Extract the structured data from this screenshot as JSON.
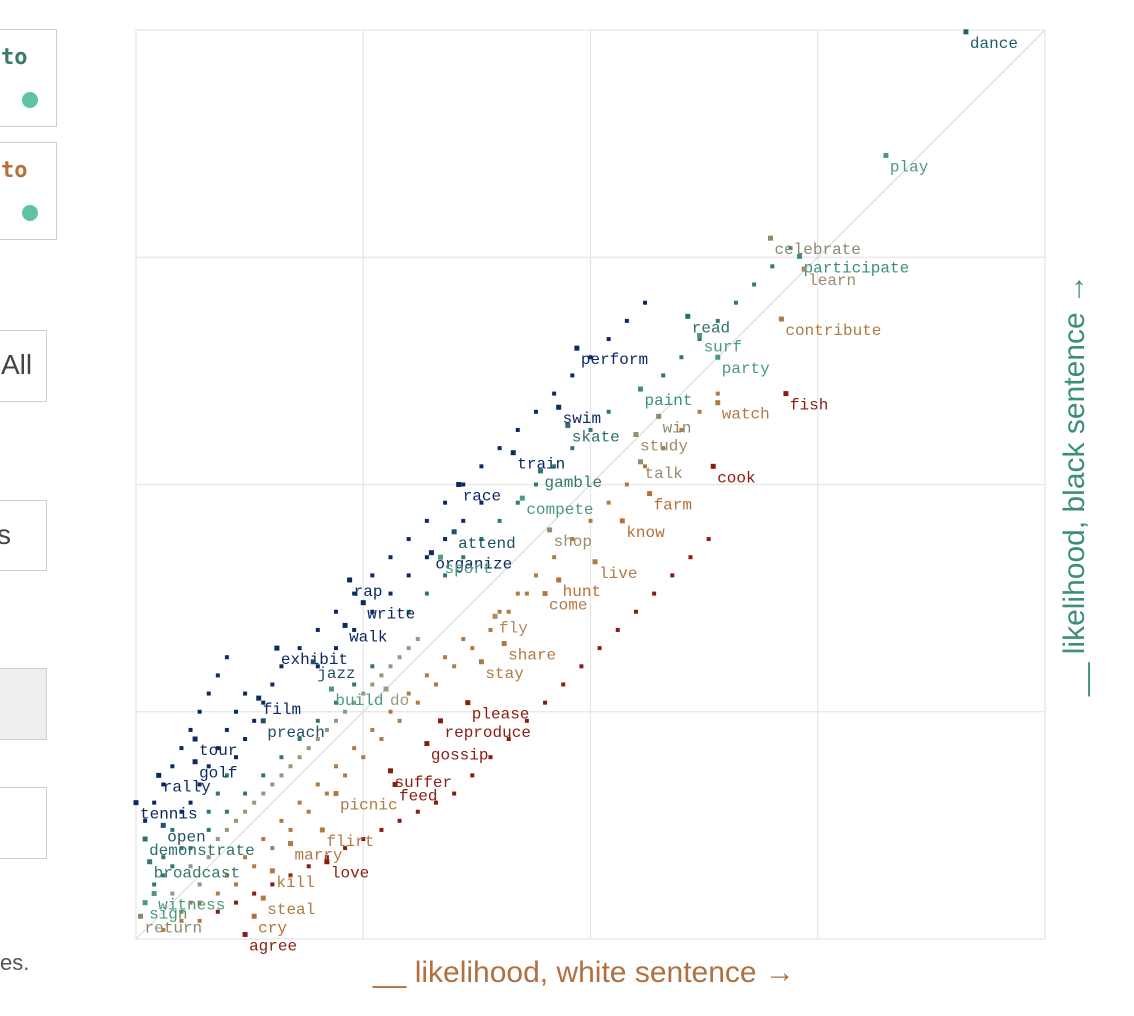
{
  "panels": [
    {
      "text": "to",
      "color": "#3b7a68"
    },
    {
      "text": "to",
      "color": "#b86f3b"
    }
  ],
  "buttons": [
    {
      "label": "All"
    },
    {
      "label": "s"
    },
    {
      "label": ""
    },
    {
      "label": ""
    }
  ],
  "side_note": "es.",
  "chart_data": {
    "type": "scatter",
    "title": "",
    "xlabel": "__ likelihood, white sentence →",
    "ylabel": "__ likelihood, black sentence →",
    "xlim": [
      0,
      100
    ],
    "ylim": [
      0,
      100
    ],
    "grid": true,
    "diagonal": true,
    "colors": {
      "black_leaning": "#0b2a63",
      "neutral": "#4a9a80",
      "white_leaning": "#b07a45",
      "strong_white": "#8a1c10"
    },
    "labeled_points": [
      {
        "label": "dance",
        "x": 91.3,
        "y": 99.8,
        "c": "#1f5f6a"
      },
      {
        "label": "play",
        "x": 82.5,
        "y": 86.2,
        "c": "#4a9a80"
      },
      {
        "label": "celebrate",
        "x": 69.8,
        "y": 77.1,
        "c": "#8a8a70"
      },
      {
        "label": "participate",
        "x": 73.0,
        "y": 75.1,
        "c": "#3b8f7a"
      },
      {
        "label": "learn",
        "x": 73.5,
        "y": 73.7,
        "c": "#9a8a70"
      },
      {
        "label": "read",
        "x": 60.7,
        "y": 68.5,
        "c": "#2f6f6a"
      },
      {
        "label": "surf",
        "x": 62.0,
        "y": 66.4,
        "c": "#4a9a80"
      },
      {
        "label": "contribute",
        "x": 71.0,
        "y": 68.2,
        "c": "#b07a45"
      },
      {
        "label": "party",
        "x": 64.0,
        "y": 64.0,
        "c": "#4a9a80"
      },
      {
        "label": "perform",
        "x": 48.5,
        "y": 65.0,
        "c": "#0b2a63"
      },
      {
        "label": "paint",
        "x": 55.5,
        "y": 60.5,
        "c": "#3b8f7a"
      },
      {
        "label": "watch",
        "x": 64.0,
        "y": 59.0,
        "c": "#b07a45"
      },
      {
        "label": "fish",
        "x": 71.5,
        "y": 60.0,
        "c": "#8a1c10"
      },
      {
        "label": "swim",
        "x": 46.5,
        "y": 58.5,
        "c": "#0b2a63"
      },
      {
        "label": "skate",
        "x": 47.5,
        "y": 56.5,
        "c": "#2f6f6a"
      },
      {
        "label": "win",
        "x": 57.5,
        "y": 57.5,
        "c": "#8a8a70"
      },
      {
        "label": "study",
        "x": 55.0,
        "y": 55.5,
        "c": "#9a8a70"
      },
      {
        "label": "train",
        "x": 41.5,
        "y": 53.5,
        "c": "#0b2a63"
      },
      {
        "label": "talk",
        "x": 55.5,
        "y": 52.5,
        "c": "#9a8a70"
      },
      {
        "label": "gamble",
        "x": 44.5,
        "y": 51.5,
        "c": "#2f7a6a"
      },
      {
        "label": "cook",
        "x": 63.5,
        "y": 52.0,
        "c": "#8a1c10"
      },
      {
        "label": "race",
        "x": 35.5,
        "y": 50.0,
        "c": "#0b2a63"
      },
      {
        "label": "compete",
        "x": 42.5,
        "y": 48.5,
        "c": "#4a9a80"
      },
      {
        "label": "farm",
        "x": 56.5,
        "y": 49.0,
        "c": "#b86f3b"
      },
      {
        "label": "know",
        "x": 53.5,
        "y": 46.0,
        "c": "#b86f3b"
      },
      {
        "label": "attend",
        "x": 35.0,
        "y": 44.8,
        "c": "#1f4f6a"
      },
      {
        "label": "shop",
        "x": 45.5,
        "y": 45.0,
        "c": "#9a8a70"
      },
      {
        "label": "organize",
        "x": 32.5,
        "y": 42.5,
        "c": "#0b2a63"
      },
      {
        "label": "sport",
        "x": 33.5,
        "y": 42.0,
        "c": "#4a9a80"
      },
      {
        "label": "live",
        "x": 50.5,
        "y": 41.5,
        "c": "#b07a45"
      },
      {
        "label": "rap",
        "x": 23.5,
        "y": 39.5,
        "c": "#0b2a63"
      },
      {
        "label": "hunt",
        "x": 46.5,
        "y": 39.5,
        "c": "#b86f3b"
      },
      {
        "label": "come",
        "x": 45.0,
        "y": 38.0,
        "c": "#b07a45"
      },
      {
        "label": "write",
        "x": 25.0,
        "y": 37.0,
        "c": "#0b2a63"
      },
      {
        "label": "fly",
        "x": 39.5,
        "y": 35.5,
        "c": "#b08a60"
      },
      {
        "label": "walk",
        "x": 23.0,
        "y": 34.5,
        "c": "#0b2a63"
      },
      {
        "label": "share",
        "x": 40.5,
        "y": 32.5,
        "c": "#b07a45"
      },
      {
        "label": "exhibit",
        "x": 15.5,
        "y": 32.0,
        "c": "#0b2a63"
      },
      {
        "label": "jazz",
        "x": 19.5,
        "y": 30.5,
        "c": "#1f4f6a"
      },
      {
        "label": "stay",
        "x": 38.0,
        "y": 30.5,
        "c": "#b07a45"
      },
      {
        "label": "build",
        "x": 21.5,
        "y": 27.5,
        "c": "#4a9a80"
      },
      {
        "label": "do",
        "x": 27.5,
        "y": 27.5,
        "c": "#9a9a80"
      },
      {
        "label": "film",
        "x": 13.5,
        "y": 26.5,
        "c": "#0b2a63"
      },
      {
        "label": "please",
        "x": 36.5,
        "y": 26.0,
        "c": "#8a1c10"
      },
      {
        "label": "preach",
        "x": 14.0,
        "y": 24.0,
        "c": "#1f4f6a"
      },
      {
        "label": "reproduce",
        "x": 33.5,
        "y": 24.0,
        "c": "#8a1c10"
      },
      {
        "label": "tour",
        "x": 6.5,
        "y": 22.0,
        "c": "#0b2a63"
      },
      {
        "label": "gossip",
        "x": 32.0,
        "y": 21.5,
        "c": "#8a1c10"
      },
      {
        "label": "golf",
        "x": 6.5,
        "y": 19.5,
        "c": "#0b2a63"
      },
      {
        "label": "suffer",
        "x": 28.0,
        "y": 18.5,
        "c": "#8a1c10"
      },
      {
        "label": "rally",
        "x": 2.5,
        "y": 18.0,
        "c": "#0b2a63"
      },
      {
        "label": "feed",
        "x": 28.5,
        "y": 17.0,
        "c": "#8a1c10"
      },
      {
        "label": "tennis",
        "x": 0.0,
        "y": 15.0,
        "c": "#0b2a63"
      },
      {
        "label": "picnic",
        "x": 22.0,
        "y": 16.0,
        "c": "#b07a45"
      },
      {
        "label": "open",
        "x": 3.0,
        "y": 12.5,
        "c": "#1f4f6a"
      },
      {
        "label": "flirt",
        "x": 20.5,
        "y": 12.0,
        "c": "#b07a45"
      },
      {
        "label": "demonstrate",
        "x": 1.0,
        "y": 11.0,
        "c": "#2f6f6a"
      },
      {
        "label": "marry",
        "x": 17.0,
        "y": 10.5,
        "c": "#b07a45"
      },
      {
        "label": "broadcast",
        "x": 1.5,
        "y": 8.5,
        "c": "#2f7a6a"
      },
      {
        "label": "love",
        "x": 21.0,
        "y": 8.5,
        "c": "#8a1c10"
      },
      {
        "label": "kill",
        "x": 15.0,
        "y": 7.5,
        "c": "#b07a45"
      },
      {
        "label": "witness",
        "x": 2.0,
        "y": 5.0,
        "c": "#4a9a80"
      },
      {
        "label": "steal",
        "x": 14.0,
        "y": 4.5,
        "c": "#b07a45"
      },
      {
        "label": "sign",
        "x": 1.0,
        "y": 4.0,
        "c": "#4a9a80"
      },
      {
        "label": "cry",
        "x": 13.0,
        "y": 2.5,
        "c": "#b86f3b"
      },
      {
        "label": "return",
        "x": 0.5,
        "y": 2.5,
        "c": "#8a8a70"
      },
      {
        "label": "agree",
        "x": 12.0,
        "y": 0.5,
        "c": "#8a1c10"
      }
    ],
    "points": [
      [
        5,
        3
      ],
      [
        6,
        4
      ],
      [
        4,
        5
      ],
      [
        7,
        6
      ],
      [
        6,
        8
      ],
      [
        8,
        9
      ],
      [
        5,
        10
      ],
      [
        9,
        11
      ],
      [
        10,
        12
      ],
      [
        11,
        13
      ],
      [
        12,
        14
      ],
      [
        13,
        15
      ],
      [
        14,
        16
      ],
      [
        15,
        17
      ],
      [
        16,
        18
      ],
      [
        17,
        19
      ],
      [
        18,
        20
      ],
      [
        19,
        21
      ],
      [
        20,
        22
      ],
      [
        21,
        23
      ],
      [
        22,
        24
      ],
      [
        23,
        25
      ],
      [
        24,
        26
      ],
      [
        25,
        27
      ],
      [
        26,
        28
      ],
      [
        27,
        29
      ],
      [
        28,
        30
      ],
      [
        29,
        31
      ],
      [
        30,
        32
      ],
      [
        31,
        33
      ],
      [
        10,
        7
      ],
      [
        12,
        9
      ],
      [
        14,
        11
      ],
      [
        16,
        13
      ],
      [
        18,
        15
      ],
      [
        20,
        17
      ],
      [
        22,
        19
      ],
      [
        24,
        21
      ],
      [
        26,
        23
      ],
      [
        28,
        25
      ],
      [
        30,
        27
      ],
      [
        32,
        29
      ],
      [
        34,
        31
      ],
      [
        36,
        33
      ],
      [
        8,
        14
      ],
      [
        9,
        16
      ],
      [
        10,
        18
      ],
      [
        11,
        20
      ],
      [
        12,
        22
      ],
      [
        13,
        24
      ],
      [
        14,
        26
      ],
      [
        15,
        28
      ],
      [
        16,
        30
      ],
      [
        18,
        32
      ],
      [
        20,
        34
      ],
      [
        22,
        36
      ],
      [
        24,
        38
      ],
      [
        26,
        40
      ],
      [
        28,
        42
      ],
      [
        30,
        44
      ],
      [
        32,
        46
      ],
      [
        34,
        48
      ],
      [
        36,
        50
      ],
      [
        38,
        52
      ],
      [
        40,
        54
      ],
      [
        42,
        56
      ],
      [
        44,
        58
      ],
      [
        46,
        60
      ],
      [
        48,
        62
      ],
      [
        50,
        64
      ],
      [
        52,
        66
      ],
      [
        54,
        68
      ],
      [
        56,
        70
      ],
      [
        3,
        9
      ],
      [
        4,
        12
      ],
      [
        5,
        14
      ],
      [
        6,
        15
      ],
      [
        7,
        17
      ],
      [
        8,
        19
      ],
      [
        9,
        21
      ],
      [
        10,
        23
      ],
      [
        11,
        25
      ],
      [
        12,
        27
      ],
      [
        7,
        2
      ],
      [
        9,
        3
      ],
      [
        11,
        4
      ],
      [
        13,
        5
      ],
      [
        15,
        6
      ],
      [
        17,
        7
      ],
      [
        19,
        8
      ],
      [
        21,
        9
      ],
      [
        23,
        10
      ],
      [
        25,
        11
      ],
      [
        27,
        12
      ],
      [
        29,
        13
      ],
      [
        31,
        14
      ],
      [
        33,
        15
      ],
      [
        35,
        16
      ],
      [
        37,
        18
      ],
      [
        39,
        20
      ],
      [
        41,
        22
      ],
      [
        43,
        24
      ],
      [
        45,
        26
      ],
      [
        47,
        28
      ],
      [
        49,
        30
      ],
      [
        51,
        32
      ],
      [
        53,
        34
      ],
      [
        55,
        36
      ],
      [
        57,
        38
      ],
      [
        59,
        40
      ],
      [
        61,
        42
      ],
      [
        63,
        44
      ],
      [
        40,
        36
      ],
      [
        42,
        38
      ],
      [
        44,
        40
      ],
      [
        46,
        42
      ],
      [
        48,
        44
      ],
      [
        50,
        46
      ],
      [
        52,
        48
      ],
      [
        54,
        50
      ],
      [
        56,
        52
      ],
      [
        58,
        54
      ],
      [
        60,
        56
      ],
      [
        62,
        58
      ],
      [
        64,
        60
      ],
      [
        2,
        6
      ],
      [
        3,
        7
      ],
      [
        4,
        8
      ],
      [
        6,
        10
      ],
      [
        8,
        12
      ],
      [
        10,
        14
      ],
      [
        12,
        16
      ],
      [
        14,
        18
      ],
      [
        16,
        20
      ],
      [
        18,
        22
      ],
      [
        20,
        24
      ],
      [
        22,
        26
      ],
      [
        24,
        28
      ],
      [
        26,
        30
      ],
      [
        30,
        36
      ],
      [
        32,
        38
      ],
      [
        34,
        40
      ],
      [
        36,
        42
      ],
      [
        38,
        44
      ],
      [
        40,
        46
      ],
      [
        42,
        48
      ],
      [
        44,
        50
      ],
      [
        46,
        52
      ],
      [
        48,
        54
      ],
      [
        50,
        56
      ],
      [
        52,
        58
      ],
      [
        58,
        62
      ],
      [
        60,
        64
      ],
      [
        62,
        66
      ],
      [
        64,
        68
      ],
      [
        66,
        70
      ],
      [
        68,
        72
      ],
      [
        70,
        74
      ],
      [
        72,
        76
      ],
      [
        25,
        20
      ],
      [
        27,
        22
      ],
      [
        29,
        24
      ],
      [
        31,
        26
      ],
      [
        33,
        28
      ],
      [
        35,
        30
      ],
      [
        37,
        32
      ],
      [
        39,
        34
      ],
      [
        41,
        36
      ],
      [
        43,
        38
      ],
      [
        15,
        10
      ],
      [
        17,
        12
      ],
      [
        19,
        14
      ],
      [
        21,
        16
      ],
      [
        23,
        18
      ],
      [
        13,
        8
      ],
      [
        11,
        6
      ],
      [
        9,
        5
      ],
      [
        7,
        4
      ],
      [
        5,
        2
      ],
      [
        3,
        1
      ],
      [
        1,
        13
      ],
      [
        2,
        15
      ],
      [
        3,
        17
      ],
      [
        4,
        19
      ],
      [
        5,
        21
      ],
      [
        6,
        23
      ],
      [
        7,
        25
      ],
      [
        8,
        27
      ],
      [
        9,
        29
      ],
      [
        10,
        31
      ],
      [
        20,
        30
      ],
      [
        22,
        32
      ],
      [
        24,
        34
      ],
      [
        26,
        36
      ],
      [
        28,
        38
      ],
      [
        30,
        40
      ],
      [
        32,
        42
      ],
      [
        34,
        44
      ],
      [
        36,
        46
      ],
      [
        38,
        48
      ]
    ]
  }
}
